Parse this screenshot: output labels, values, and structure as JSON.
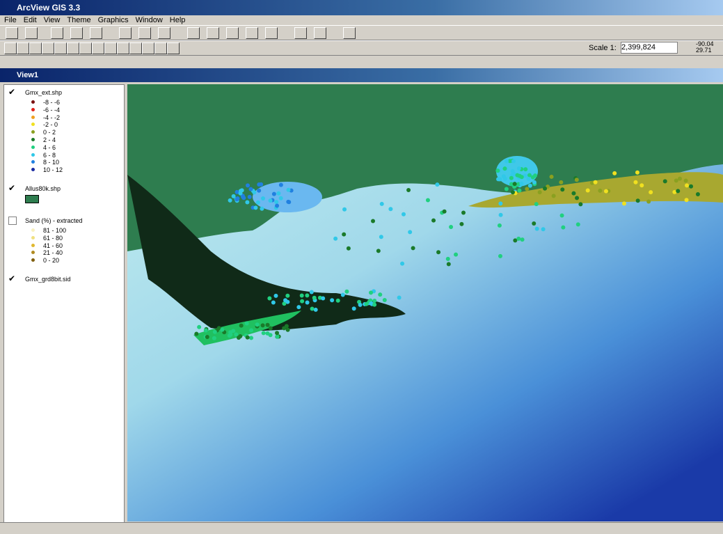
{
  "window": {
    "title": "ArcView GIS 3.3"
  },
  "menu": [
    "File",
    "Edit",
    "View",
    "Theme",
    "Graphics",
    "Window",
    "Help"
  ],
  "status": {
    "scale_label": "Scale 1:",
    "scale": "2,399,824",
    "x": "-90.04",
    "y": "29.71"
  },
  "view": {
    "title": "View1"
  },
  "legend": [
    {
      "name": "Gmx_ext.shp",
      "checked": true,
      "classes": [
        {
          "label": "-8 - -6",
          "color": "#7a1010"
        },
        {
          "label": "-6 - -4",
          "color": "#e0201a"
        },
        {
          "label": "-4 - -2",
          "color": "#f0a020"
        },
        {
          "label": "-2 - 0",
          "color": "#f0e020"
        },
        {
          "label": "0 - 2",
          "color": "#8aa020"
        },
        {
          "label": "2 - 4",
          "color": "#1a7a2a"
        },
        {
          "label": "4 - 6",
          "color": "#20d080"
        },
        {
          "label": "6 - 8",
          "color": "#30c8e8"
        },
        {
          "label": "8 - 10",
          "color": "#2080e0"
        },
        {
          "label": "10 - 12",
          "color": "#1a2aa0"
        }
      ]
    },
    {
      "name": "Allus80k.shp",
      "checked": true,
      "classes": [
        {
          "color": "#2e7d4f"
        }
      ]
    },
    {
      "name": "Sand (%) - extracted",
      "checked": false,
      "classes": [
        {
          "label": "81 - 100",
          "color": "#f8f0c0"
        },
        {
          "label": "61 - 80",
          "color": "#f0e080"
        },
        {
          "label": "41 - 60",
          "color": "#e0b830"
        },
        {
          "label": "21 - 40",
          "color": "#b08a20"
        },
        {
          "label": "0 - 20",
          "color": "#806010"
        }
      ]
    },
    {
      "name": "Gmx_grd8bit.sid",
      "checked": true,
      "classes": []
    }
  ]
}
